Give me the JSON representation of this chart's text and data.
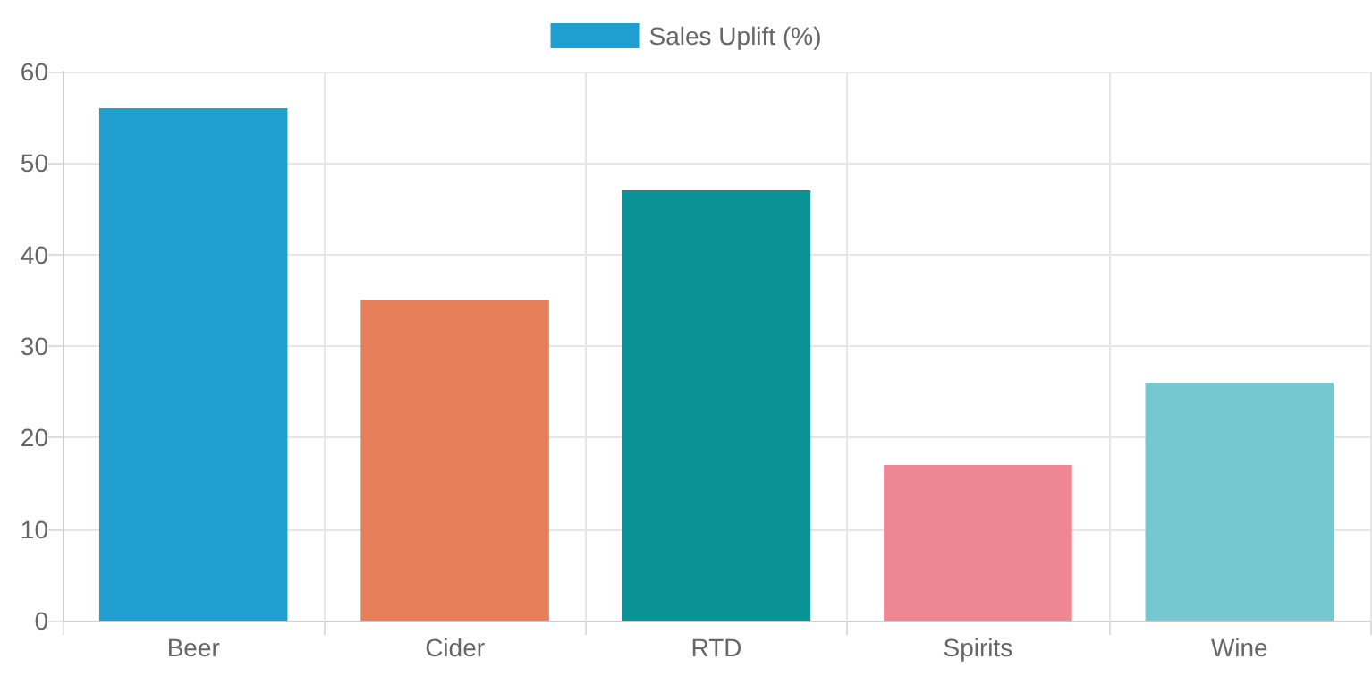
{
  "chart_data": {
    "type": "bar",
    "categories": [
      "Beer",
      "Cider",
      "RTD",
      "Spirits",
      "Wine"
    ],
    "series": [
      {
        "name": "Sales Uplift (%)",
        "color": "#1e9fcf",
        "colors": [
          "#1e9fcf",
          "#e77f5b",
          "#0a9394",
          "#ef8694",
          "#76c8d0"
        ],
        "values": [
          56,
          35,
          47,
          17,
          26
        ]
      }
    ],
    "ylim": [
      0,
      60
    ],
    "yticks": [
      0,
      10,
      20,
      30,
      40,
      50,
      60
    ],
    "grid": true,
    "legend": "top"
  }
}
